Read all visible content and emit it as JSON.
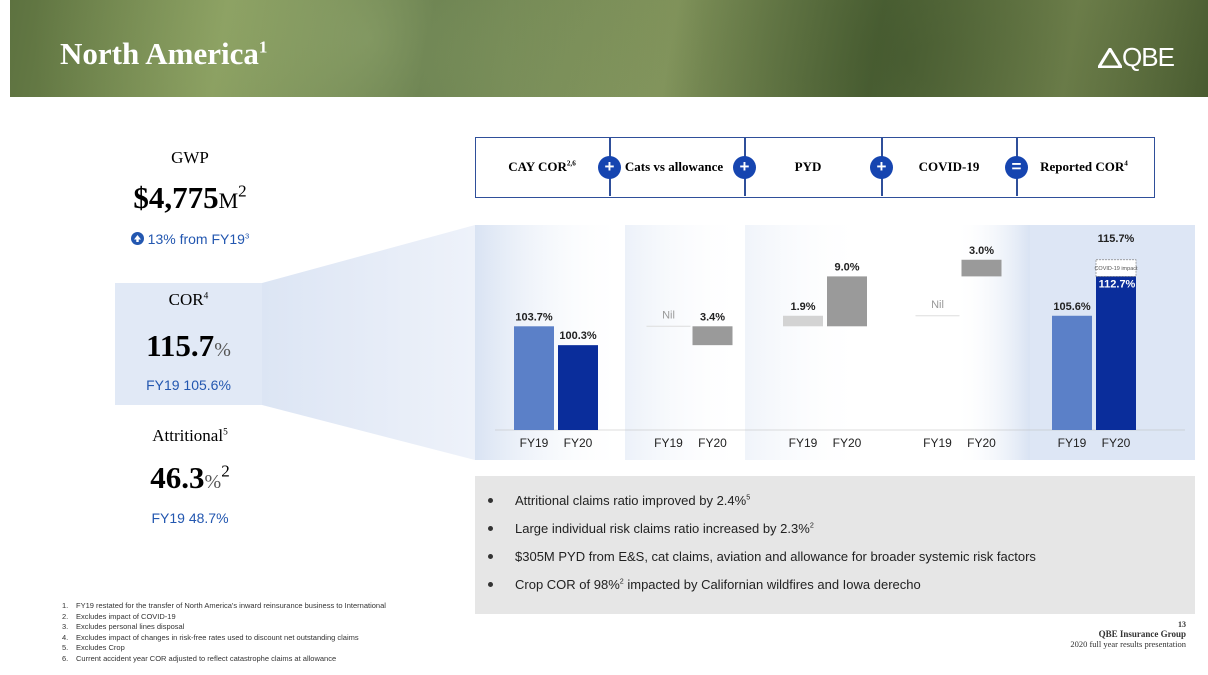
{
  "header": {
    "title": "North America",
    "title_sup": "1",
    "logo": "QBE"
  },
  "gwp": {
    "label": "GWP",
    "value": "$4,775",
    "unit": "M",
    "unit_sup": "2",
    "change": "13% from FY19",
    "change_sup": "3"
  },
  "cor": {
    "label": "COR",
    "label_sup": "4",
    "value": "115.7",
    "unit": "%",
    "comparison": "FY19 105.6%"
  },
  "attritional": {
    "label": "Attritional",
    "label_sup": "5",
    "value": "46.3",
    "unit": "%",
    "unit_sup": "2",
    "comparison": "FY19 48.7%"
  },
  "formula": [
    {
      "text": "CAY COR",
      "sup": "2,6"
    },
    {
      "text": "+"
    },
    {
      "text": "Cats vs allowance"
    },
    {
      "text": "+"
    },
    {
      "text": "PYD"
    },
    {
      "text": "+"
    },
    {
      "text": "COVID-19"
    },
    {
      "text": "="
    },
    {
      "text": "Reported COR",
      "sup": "4"
    }
  ],
  "chart_data": {
    "type": "waterfall",
    "series": [
      {
        "name": "FY19",
        "color": "#5b80c8",
        "float_color": "#d3d3d3",
        "values": [
          103.7,
          null,
          1.9,
          null,
          105.6
        ],
        "value_labels": [
          "103.7%",
          "Nil",
          "1.9%",
          "Nil",
          "105.6%"
        ]
      },
      {
        "name": "FY20",
        "color": "#0a2d9b",
        "float_color": "#9a9a9a",
        "values": [
          100.3,
          3.4,
          9.0,
          3.0,
          115.7
        ],
        "value_labels": [
          "100.3%",
          "3.4%",
          "9.0%",
          "3.0%",
          "115.7%"
        ]
      }
    ],
    "ylim": [
      85,
      118
    ],
    "covid_split": {
      "value": 112.7,
      "label": "112.7%",
      "note": "COVID-19 impact"
    }
  },
  "bullets": [
    {
      "text": "Attritional claims ratio improved by 2.4%",
      "sup": "5"
    },
    {
      "text": "Large individual  risk claims ratio increased by 2.3%",
      "sup": "2"
    },
    {
      "text": "$305M PYD from E&S, cat claims, aviation and allowance for broader systemic risk factors"
    },
    {
      "text": "Crop COR of 98%",
      "sup": "2",
      "rest": " impacted by Californian wildfires and Iowa derecho"
    }
  ],
  "footnotes": [
    {
      "n": "1.",
      "text": "FY19 restated for the transfer of North America's inward reinsurance business to International"
    },
    {
      "n": "2.",
      "text": "Excludes impact of COVID-19"
    },
    {
      "n": "3.",
      "text": "Excludes personal lines disposal"
    },
    {
      "n": "4.",
      "text": "Excludes impact of changes in risk-free rates used to discount net outstanding claims"
    },
    {
      "n": "5.",
      "text": "Excludes Crop"
    },
    {
      "n": "6.",
      "text": "Current accident year COR adjusted to reflect catastrophe claims at allowance"
    }
  ],
  "footer": {
    "page": "13",
    "company": "QBE Insurance Group",
    "subtitle": "2020 full year results presentation"
  }
}
